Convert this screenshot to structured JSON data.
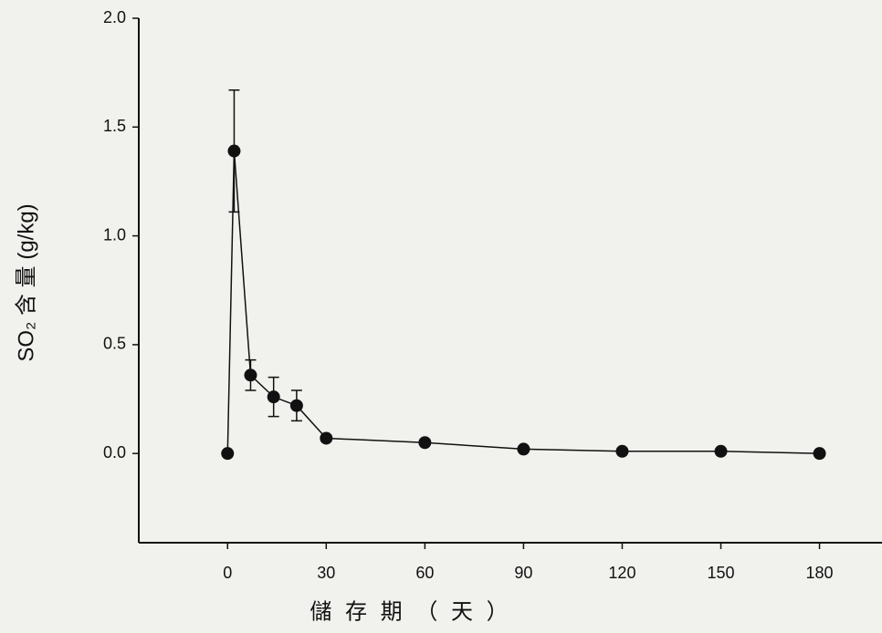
{
  "chart_data": {
    "type": "line",
    "x_label": "儲 存 期 （ 天 ）",
    "y_label": "SO₂ 含 量 (g/kg)",
    "x": [
      0,
      2,
      7,
      14,
      21,
      30,
      60,
      90,
      120,
      150,
      180
    ],
    "series": [
      {
        "color": "#111111",
        "values": [
          0,
          1.39,
          0.36,
          0.26,
          0.22,
          0.07,
          0.05,
          0.02,
          0.01,
          0.01,
          0.0
        ],
        "errors": [
          null,
          0.28,
          0.07,
          0.09,
          0.07,
          0.01,
          null,
          null,
          null,
          null,
          null
        ]
      }
    ],
    "xlim": [
      -27,
      199
    ],
    "xticks": [
      0,
      30,
      60,
      90,
      120,
      150,
      180
    ],
    "ylim": [
      -0.41,
      2.0
    ],
    "yticks": [
      {
        "value": 0,
        "label": "0.0"
      },
      {
        "value": 0.5,
        "label": "0.5"
      },
      {
        "value": 1,
        "label": "1.0"
      },
      {
        "value": 1.5,
        "label": "1.5"
      },
      {
        "value": 2,
        "label": "2.0"
      }
    ],
    "grid": false
  }
}
